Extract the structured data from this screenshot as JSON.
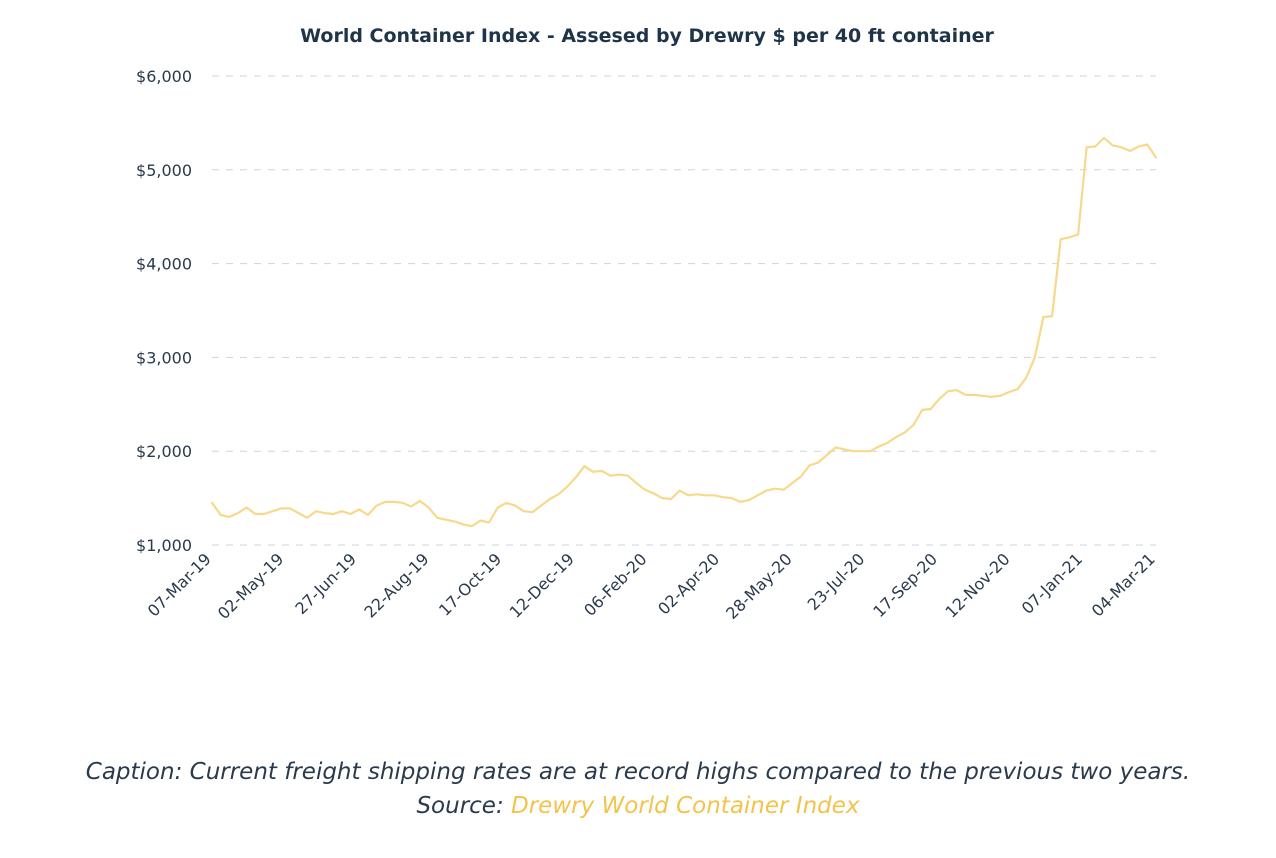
{
  "chart_data": {
    "type": "line",
    "title": "World Container Index - Assesed by Drewry $ per 40 ft container",
    "xlabel": "",
    "ylabel": "",
    "ylim": [
      1000,
      6000
    ],
    "yticks": [
      1000,
      2000,
      3000,
      4000,
      5000,
      6000
    ],
    "ytick_labels": [
      "$1,000",
      "$2,000",
      "$3,000",
      "$4,000",
      "$5,000",
      "$6,000"
    ],
    "xtick_labels": [
      "07-Mar-19",
      "02-May-19",
      "27-Jun-19",
      "22-Aug-19",
      "17-Oct-19",
      "12-Dec-19",
      "06-Feb-20",
      "02-Apr-20",
      "28-May-20",
      "23-Jul-20",
      "17-Sep-20",
      "12-Nov-20",
      "07-Jan-21",
      "04-Mar-21"
    ],
    "grid": true,
    "line_color": "#f7d98b",
    "series": [
      {
        "values": [
          1450,
          1320,
          1300,
          1340,
          1400,
          1330,
          1330,
          1360,
          1390,
          1390,
          1340,
          1290,
          1360,
          1340,
          1330,
          1360,
          1330,
          1380,
          1320,
          1420,
          1460,
          1460,
          1450,
          1410,
          1470,
          1400,
          1290,
          1270,
          1250,
          1220,
          1200,
          1260,
          1240,
          1400,
          1450,
          1420,
          1360,
          1350,
          1420,
          1490,
          1540,
          1620,
          1720,
          1840,
          1780,
          1790,
          1740,
          1750,
          1740,
          1660,
          1590,
          1550,
          1500,
          1490,
          1580,
          1530,
          1540,
          1530,
          1530,
          1510,
          1500,
          1460,
          1480,
          1530,
          1580,
          1600,
          1590,
          1660,
          1730,
          1850,
          1880,
          1960,
          2040,
          2020,
          2000,
          2000,
          2000,
          2050,
          2090,
          2150,
          2200,
          2280,
          2440,
          2450,
          2560,
          2640,
          2650,
          2600,
          2600,
          2590,
          2580,
          2590,
          2630,
          2660,
          2780,
          3000,
          3430,
          3440,
          4260,
          4280,
          4310,
          5240,
          5250,
          5340,
          5260,
          5240,
          5200,
          5250,
          5270,
          5130
        ]
      }
    ]
  },
  "caption": {
    "line1": "Caption: Current freight shipping rates are at record highs compared to the previous two years.",
    "source_prefix": "Source: ",
    "source_link": "Drewry World Container Index"
  },
  "colors": {
    "line": "#f7d98b",
    "grid": "#cfd4da",
    "text": "#2a3a4c",
    "title": "#1f3448",
    "accent": "#f3c34a"
  }
}
